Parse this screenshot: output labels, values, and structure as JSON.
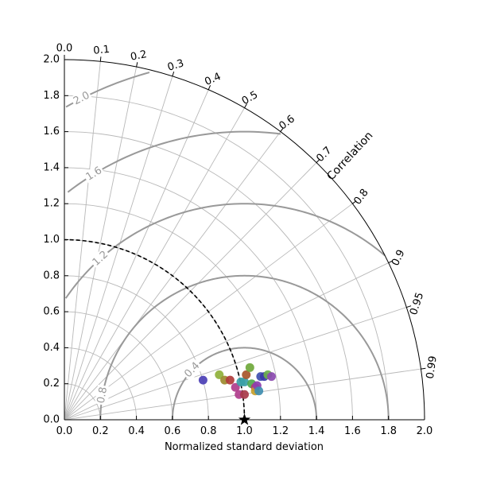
{
  "chart_data": {
    "type": "scatter",
    "subtype": "taylor-diagram",
    "xlabel": "Normalized standard deviation",
    "angular_label": "Correlation",
    "std_range": [
      0,
      2
    ],
    "std_ticks": [
      "0.0",
      "0.2",
      "0.4",
      "0.6",
      "0.8",
      "1.0",
      "1.2",
      "1.4",
      "1.6",
      "1.8",
      "2.0"
    ],
    "correlation_ticks": [
      "0.0",
      "0.1",
      "0.2",
      "0.3",
      "0.4",
      "0.5",
      "0.6",
      "0.7",
      "0.8",
      "0.9",
      "0.95",
      "0.99"
    ],
    "rms_contours": [
      "0.4",
      "0.8",
      "1.2",
      "1.6",
      "2.0"
    ],
    "reference": {
      "std": 1.0,
      "correlation": 1.0,
      "marker": "star"
    },
    "grid": true,
    "points": [
      {
        "x": 0.77,
        "y": 0.22,
        "color": "#4b3fb5"
      },
      {
        "x": 0.86,
        "y": 0.25,
        "color": "#8fb03a"
      },
      {
        "x": 0.89,
        "y": 0.22,
        "color": "#9c8a2e"
      },
      {
        "x": 0.92,
        "y": 0.22,
        "color": "#b03b3b"
      },
      {
        "x": 0.95,
        "y": 0.18,
        "color": "#b03c8c"
      },
      {
        "x": 0.97,
        "y": 0.14,
        "color": "#b03c8c"
      },
      {
        "x": 0.98,
        "y": 0.21,
        "color": "#3aa0a6"
      },
      {
        "x": 1.0,
        "y": 0.21,
        "color": "#3aa0a6"
      },
      {
        "x": 1.0,
        "y": 0.14,
        "color": "#a83a4a"
      },
      {
        "x": 1.01,
        "y": 0.25,
        "color": "#a7552a"
      },
      {
        "x": 1.03,
        "y": 0.29,
        "color": "#6fa83b"
      },
      {
        "x": 1.04,
        "y": 0.2,
        "color": "#4ea84e"
      },
      {
        "x": 1.06,
        "y": 0.18,
        "color": "#b93a6a"
      },
      {
        "x": 1.06,
        "y": 0.16,
        "color": "#c7a12b"
      },
      {
        "x": 1.07,
        "y": 0.19,
        "color": "#8d3fb0"
      },
      {
        "x": 1.08,
        "y": 0.16,
        "color": "#3f8db0"
      },
      {
        "x": 1.09,
        "y": 0.24,
        "color": "#3f4fb0"
      },
      {
        "x": 1.11,
        "y": 0.24,
        "color": "#3a3aa8"
      },
      {
        "x": 1.13,
        "y": 0.25,
        "color": "#6db04a"
      },
      {
        "x": 1.15,
        "y": 0.24,
        "color": "#8b4ab0"
      }
    ]
  }
}
